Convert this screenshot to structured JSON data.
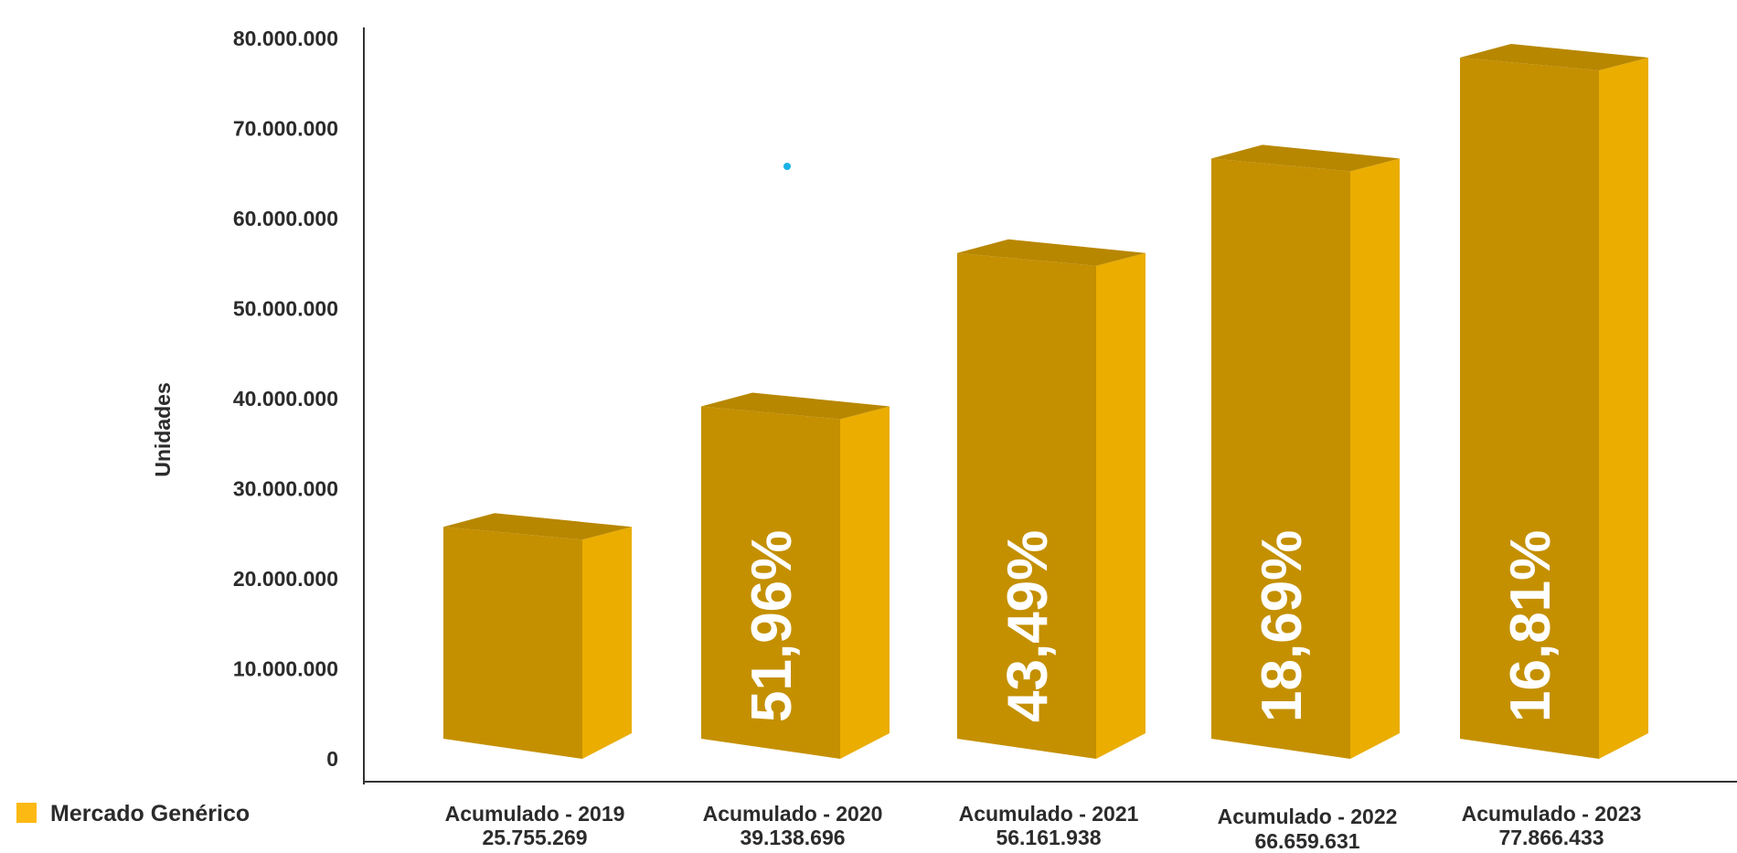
{
  "chart_data": {
    "type": "bar",
    "ylabel": "Unidades",
    "ylim": [
      0,
      80000000
    ],
    "yticks": [
      "0",
      "10.000.000",
      "20.000.000",
      "30.000.000",
      "40.000.000",
      "50.000.000",
      "60.000.000",
      "70.000.000",
      "80.000.000"
    ],
    "categories": [
      "Acumulado - 2019",
      "Acumulado - 2020",
      "Acumulado - 2021",
      "Acumulado - 2022",
      "Acumulado - 2023"
    ],
    "value_labels": [
      "25.755.269",
      "39.138.696",
      "56.161.938",
      "66.659.631",
      "77.866.433"
    ],
    "values": [
      25755269,
      39138696,
      56161938,
      66659631,
      77866433
    ],
    "growth_labels": [
      "",
      "51,96%",
      "43,49%",
      "18,69%",
      "16,81%"
    ],
    "series": [
      {
        "name": "Mercado Genérico",
        "values": [
          25755269,
          39138696,
          56161938,
          66659631,
          77866433
        ]
      }
    ],
    "legend_position": "bottom-left",
    "grid": false,
    "colors": {
      "front": "#c49000",
      "side": "#eaad00",
      "top": "#b88700",
      "legend": "#fdb913",
      "axis": "#333333",
      "marker": "#1ab2e8"
    }
  }
}
